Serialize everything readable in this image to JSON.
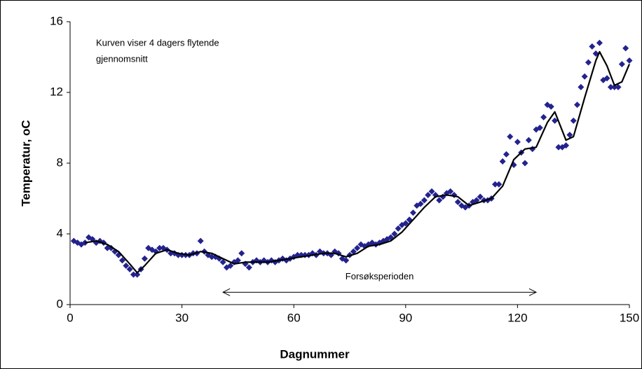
{
  "chart_data": {
    "type": "scatter",
    "x_label": "Dagnummer",
    "y_label": "Temperatur, oC",
    "annotation": [
      "Kurven viser 4 dagers flytende",
      "gjennomsnitt"
    ],
    "period": {
      "label": "Forsøksperioden",
      "x": [
        41,
        125
      ],
      "y": 0.7
    },
    "xlim": [
      0,
      150
    ],
    "xticks": [
      0,
      30,
      60,
      90,
      120,
      150
    ],
    "ylim": [
      0,
      16
    ],
    "yticks": [
      0,
      4,
      8,
      12,
      16
    ],
    "grid": false,
    "series": [
      {
        "type": "scatter",
        "color": "#23238e",
        "x": [
          1,
          2,
          3,
          4,
          5,
          6,
          7,
          8,
          9,
          10,
          11,
          12,
          13,
          14,
          15,
          16,
          17,
          18,
          19,
          20,
          21,
          22,
          23,
          24,
          25,
          26,
          27,
          28,
          29,
          30,
          31,
          32,
          33,
          34,
          35,
          36,
          37,
          38,
          39,
          40,
          41,
          42,
          43,
          44,
          45,
          46,
          47,
          48,
          49,
          50,
          51,
          52,
          53,
          54,
          55,
          56,
          57,
          58,
          59,
          60,
          61,
          62,
          63,
          64,
          65,
          66,
          67,
          68,
          69,
          70,
          71,
          72,
          73,
          74,
          75,
          76,
          77,
          78,
          79,
          80,
          81,
          82,
          83,
          84,
          85,
          86,
          87,
          88,
          89,
          90,
          91,
          92,
          93,
          94,
          95,
          96,
          97,
          98,
          99,
          100,
          101,
          102,
          103,
          104,
          105,
          106,
          107,
          108,
          109,
          110,
          111,
          112,
          113,
          114,
          115,
          116,
          117,
          118,
          119,
          120,
          121,
          122,
          123,
          124,
          125,
          126,
          127,
          128,
          129,
          130,
          131,
          132,
          133,
          134,
          135,
          136,
          137,
          138,
          139,
          140,
          141,
          142,
          143,
          144,
          145,
          146,
          147,
          148,
          149,
          150
        ],
        "values": [
          3.6,
          3.5,
          3.4,
          3.5,
          3.8,
          3.7,
          3.5,
          3.6,
          3.5,
          3.2,
          3.2,
          3.0,
          2.8,
          2.5,
          2.2,
          2.0,
          1.7,
          1.7,
          2.0,
          2.6,
          3.2,
          3.1,
          3.0,
          3.2,
          3.2,
          3.1,
          2.9,
          2.9,
          2.8,
          2.8,
          2.8,
          2.8,
          2.9,
          2.9,
          3.6,
          3.0,
          2.8,
          2.7,
          2.7,
          2.6,
          2.4,
          2.1,
          2.2,
          2.4,
          2.5,
          2.9,
          2.3,
          2.1,
          2.4,
          2.5,
          2.4,
          2.5,
          2.4,
          2.5,
          2.4,
          2.5,
          2.6,
          2.5,
          2.6,
          2.7,
          2.8,
          2.8,
          2.8,
          2.8,
          2.9,
          2.8,
          3.0,
          2.9,
          2.9,
          2.8,
          3.0,
          2.9,
          2.6,
          2.5,
          2.8,
          3.0,
          3.2,
          3.4,
          3.3,
          3.4,
          3.5,
          3.4,
          3.5,
          3.6,
          3.7,
          3.8,
          4.0,
          4.3,
          4.5,
          4.6,
          4.8,
          5.2,
          5.6,
          5.7,
          5.9,
          6.2,
          6.4,
          6.2,
          5.9,
          6.1,
          6.3,
          6.4,
          6.2,
          5.8,
          5.6,
          5.5,
          5.6,
          5.8,
          5.9,
          6.1,
          5.9,
          5.9,
          6.0,
          6.8,
          6.8,
          8.1,
          8.5,
          9.5,
          7.9,
          9.2,
          8.6,
          8.0,
          9.3,
          8.8,
          9.9,
          10.0,
          10.6,
          11.3,
          11.2,
          10.4,
          8.9,
          8.9,
          9.0,
          9.6,
          10.4,
          11.3,
          12.3,
          12.9,
          13.7,
          14.6,
          14.2,
          14.8,
          12.7,
          12.8,
          12.3,
          12.3,
          12.3,
          13.6,
          14.5,
          13.8
        ]
      },
      {
        "type": "line",
        "color": "#000000",
        "x": [
          4,
          7,
          10,
          13,
          16,
          18,
          20,
          23,
          26,
          29,
          32,
          35,
          38,
          41,
          44,
          47,
          50,
          53,
          56,
          59,
          62,
          65,
          68,
          71,
          74,
          77,
          80,
          83,
          86,
          89,
          92,
          95,
          98,
          101,
          104,
          107,
          110,
          113,
          116,
          119,
          122,
          125,
          128,
          130,
          133,
          135,
          138,
          141,
          142,
          144,
          146,
          148,
          150
        ],
        "values": [
          3.5,
          3.6,
          3.4,
          3.0,
          2.3,
          1.8,
          2.2,
          2.9,
          3.1,
          2.9,
          2.8,
          3.0,
          2.9,
          2.6,
          2.3,
          2.4,
          2.4,
          2.4,
          2.5,
          2.6,
          2.7,
          2.8,
          2.9,
          2.9,
          2.7,
          2.9,
          3.3,
          3.4,
          3.6,
          4.1,
          4.8,
          5.5,
          6.1,
          6.2,
          6.1,
          5.6,
          5.8,
          6.0,
          6.7,
          8.2,
          8.8,
          8.9,
          10.3,
          10.9,
          9.3,
          9.5,
          11.7,
          13.8,
          14.3,
          13.5,
          12.4,
          12.6,
          13.6
        ]
      }
    ]
  }
}
